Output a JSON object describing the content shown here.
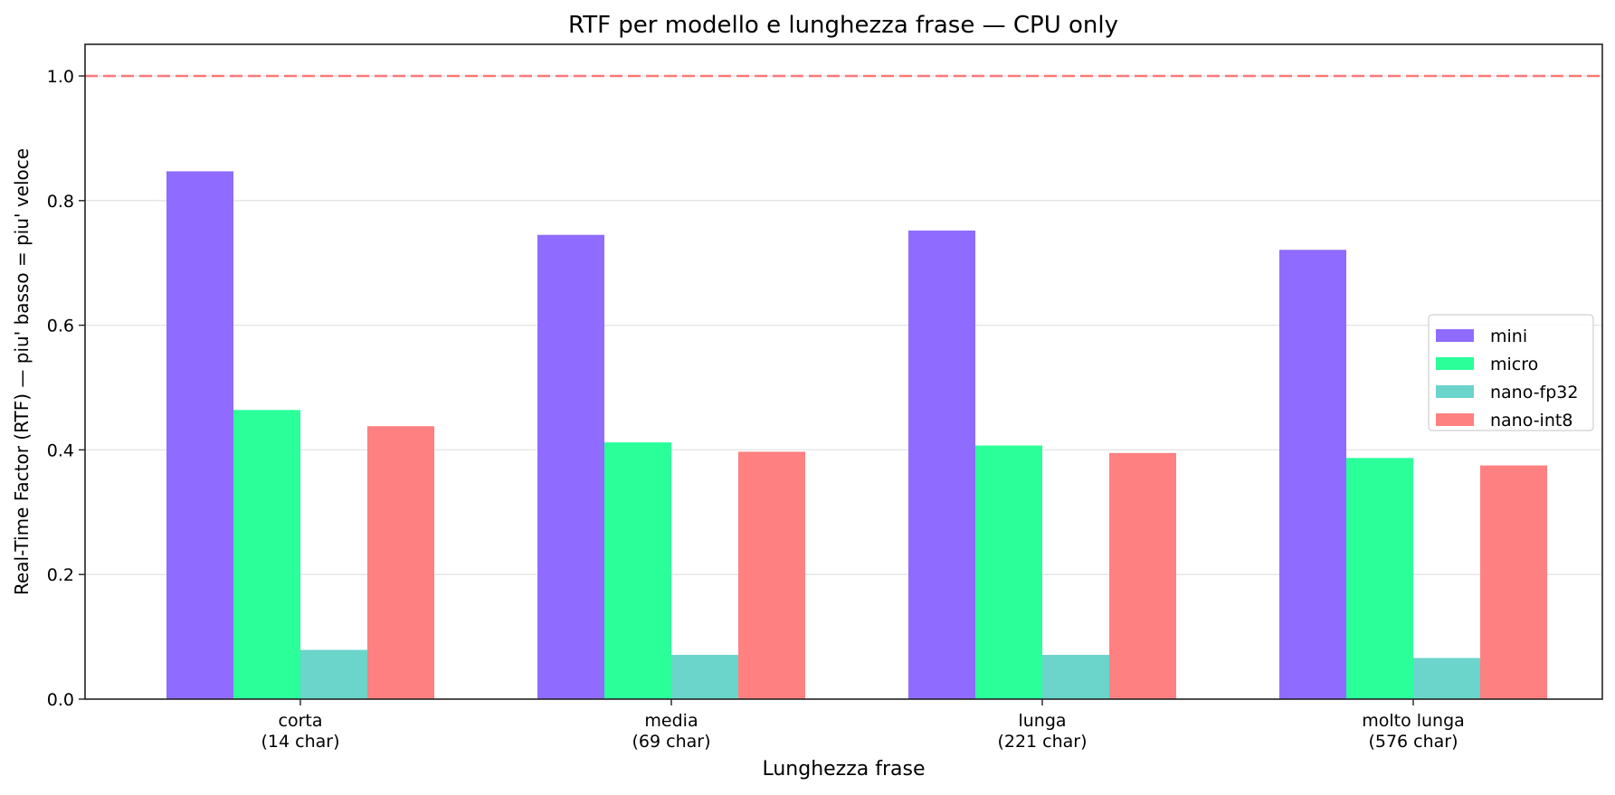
{
  "chart_data": {
    "type": "bar",
    "title": "RTF per modello e lunghezza frase — CPU only",
    "xlabel": "Lunghezza frase",
    "ylabel": "Real-Time Factor (RTF) — piu' basso = piu' veloce",
    "categories": [
      "corta\n(14 char)",
      "media\n(69 char)",
      "lunga\n(221 char)",
      "molto lunga\n(576 char)"
    ],
    "category_lines": [
      [
        "corta",
        "(14 char)"
      ],
      [
        "media",
        "(69 char)"
      ],
      [
        "lunga",
        "(221 char)"
      ],
      [
        "molto lunga",
        "(576 char)"
      ]
    ],
    "series": [
      {
        "name": "mini",
        "color": "#8f6bff",
        "values": [
          0.847,
          0.745,
          0.752,
          0.721
        ]
      },
      {
        "name": "micro",
        "color": "#2bff9a",
        "values": [
          0.464,
          0.412,
          0.407,
          0.387
        ]
      },
      {
        "name": "nano-fp32",
        "color": "#6bd4cb",
        "values": [
          0.079,
          0.071,
          0.071,
          0.066
        ]
      },
      {
        "name": "nano-int8",
        "color": "#ff8080",
        "values": [
          0.438,
          0.397,
          0.395,
          0.375
        ]
      }
    ],
    "ylim": [
      0,
      1.05
    ],
    "yticks": [
      "0.0",
      "0.2",
      "0.4",
      "0.6",
      "0.8",
      "1.0"
    ],
    "reference_line": {
      "y": 1.0,
      "style": "dashed",
      "color": "#ff6b6b"
    },
    "grid": "y",
    "legend_position": "center right"
  }
}
